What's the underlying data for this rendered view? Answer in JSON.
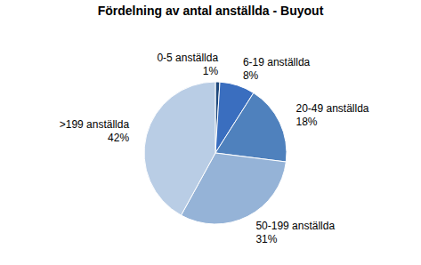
{
  "chart_data": {
    "type": "pie",
    "title": "Fördelning av antal anställda - Buyout",
    "categories": [
      "0-5 anställda",
      "6-19 anställda",
      "20-49 anställda",
      "50-199 anställda",
      ">199 anställda"
    ],
    "values": [
      1,
      8,
      18,
      31,
      42
    ],
    "value_labels": [
      "1%",
      "8%",
      "18%",
      "31%",
      "42%"
    ],
    "colors": [
      "#1f497d",
      "#3a6ebf",
      "#4f81bd",
      "#95b3d7",
      "#b9cde5"
    ],
    "data_labels": true
  }
}
